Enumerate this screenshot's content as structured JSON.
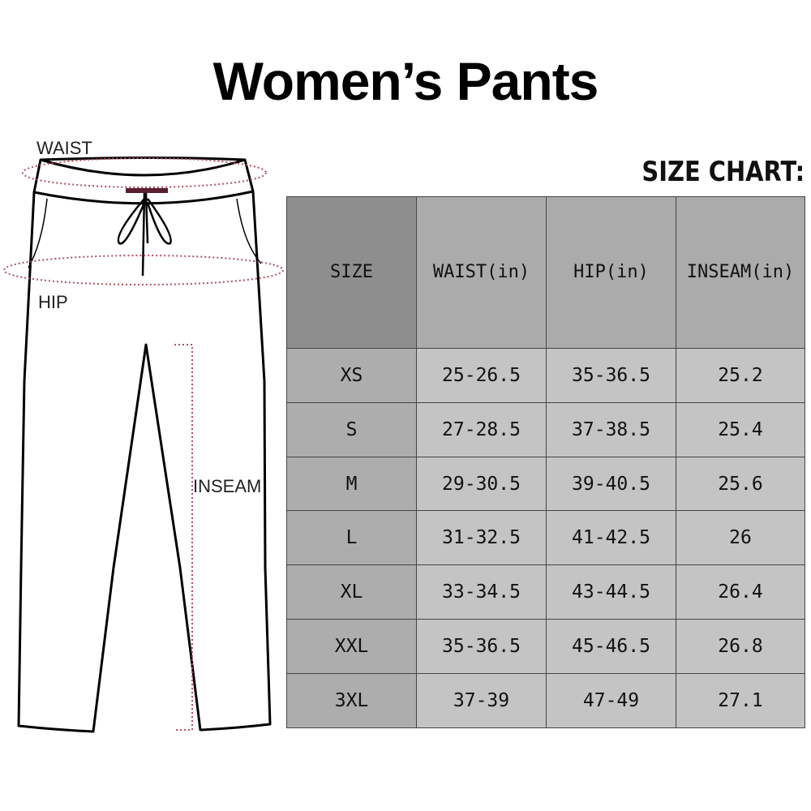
{
  "title": "Women’s Pants",
  "chart_label": "SIZE CHART:",
  "diagram": {
    "waist": "WAIST",
    "hip": "HIP",
    "inseam": "INSEAM"
  },
  "table": {
    "headers": [
      "SIZE",
      "WAIST(in)",
      "HIP(in)",
      "INSEAM(in)"
    ],
    "rows": [
      [
        "XS",
        "25-26.5",
        "35-36.5",
        "25.2"
      ],
      [
        "S",
        "27-28.5",
        "37-38.5",
        "25.4"
      ],
      [
        "M",
        "29-30.5",
        "39-40.5",
        "25.6"
      ],
      [
        "L",
        "31-32.5",
        "41-42.5",
        "26"
      ],
      [
        "XL",
        "33-34.5",
        "43-44.5",
        "26.4"
      ],
      [
        "XXL",
        "35-36.5",
        "45-46.5",
        "26.8"
      ],
      [
        "3XL",
        "37-39",
        "47-49",
        "27.1"
      ]
    ]
  },
  "colors": {
    "measure_line": "#b05060",
    "header_size": "#8e8e8e",
    "header": "#ababab",
    "cell": "#c4c4c4"
  }
}
